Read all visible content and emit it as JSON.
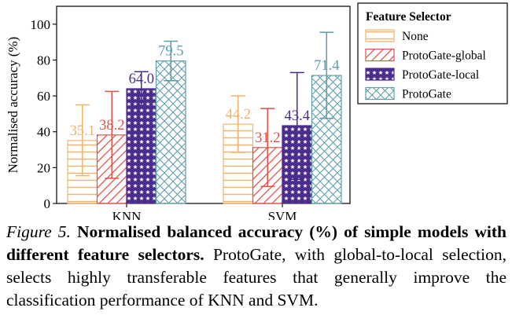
{
  "chart_data": {
    "type": "bar",
    "categories": [
      "KNN",
      "SVM"
    ],
    "ylabel": "Normalised accuracy (%)",
    "xlabel": "",
    "ylim": [
      0,
      110
    ],
    "yticks": [
      0,
      20,
      40,
      60,
      80,
      100
    ],
    "grid": "none",
    "legend": {
      "title": "Feature Selector",
      "placement": "right"
    },
    "series": [
      {
        "name": "None",
        "color": "#f5b26b",
        "pattern": "horizontal-lines",
        "values": [
          35.1,
          44.2
        ],
        "labels": [
          "35.1",
          "44.2"
        ],
        "error_low": [
          15.5,
          28.5
        ],
        "error_high": [
          55.0,
          60.0
        ]
      },
      {
        "name": "ProtoGate-global",
        "color": "#e0524a",
        "pattern": "diagonal-lines",
        "values": [
          38.2,
          31.2
        ],
        "labels": [
          "38.2",
          "31.2"
        ],
        "error_low": [
          14.0,
          9.5
        ],
        "error_high": [
          62.5,
          53.0
        ]
      },
      {
        "name": "ProtoGate-local",
        "color": "#4b2c8c",
        "pattern": "stars",
        "values": [
          64.0,
          43.4
        ],
        "labels": [
          "64.0",
          "43.4"
        ],
        "error_low": [
          54.5,
          13.5
        ],
        "error_high": [
          73.5,
          73.0
        ]
      },
      {
        "name": "ProtoGate",
        "color": "#5e9ea8",
        "pattern": "crosshatch",
        "values": [
          79.5,
          71.4
        ],
        "labels": [
          "79.5",
          "71.4"
        ],
        "error_low": [
          68.5,
          47.5
        ],
        "error_high": [
          90.5,
          95.5
        ]
      }
    ]
  },
  "caption": {
    "figure_label": "Figure 5.",
    "title": "Normalised balanced accuracy (%) of simple models with different feature selectors.",
    "body": "ProtoGate, with global-to-local selection, selects highly transferable features that generally improve the classification performance of KNN and SVM."
  }
}
